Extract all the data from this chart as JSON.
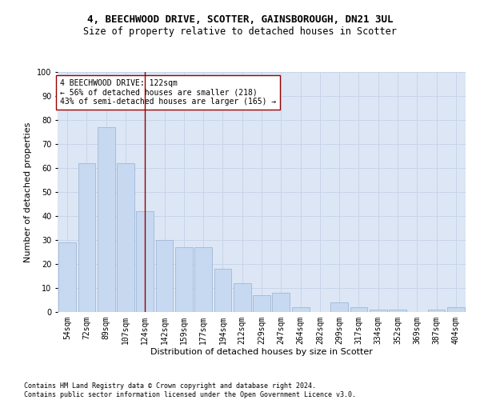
{
  "title1": "4, BEECHWOOD DRIVE, SCOTTER, GAINSBOROUGH, DN21 3UL",
  "title2": "Size of property relative to detached houses in Scotter",
  "xlabel": "Distribution of detached houses by size in Scotter",
  "ylabel": "Number of detached properties",
  "categories": [
    "54sqm",
    "72sqm",
    "89sqm",
    "107sqm",
    "124sqm",
    "142sqm",
    "159sqm",
    "177sqm",
    "194sqm",
    "212sqm",
    "229sqm",
    "247sqm",
    "264sqm",
    "282sqm",
    "299sqm",
    "317sqm",
    "334sqm",
    "352sqm",
    "369sqm",
    "387sqm",
    "404sqm"
  ],
  "values": [
    29,
    62,
    77,
    62,
    42,
    30,
    27,
    27,
    18,
    12,
    7,
    8,
    2,
    0,
    4,
    2,
    1,
    1,
    0,
    1,
    2
  ],
  "bar_color": "#c6d9f0",
  "bar_edge_color": "#a0b8d8",
  "vline_x_index": 4,
  "vline_color": "#990000",
  "annotation_text": "4 BEECHWOOD DRIVE: 122sqm\n← 56% of detached houses are smaller (218)\n43% of semi-detached houses are larger (165) →",
  "annotation_box_color": "white",
  "annotation_box_edge_color": "#990000",
  "ylim": [
    0,
    100
  ],
  "yticks": [
    0,
    10,
    20,
    30,
    40,
    50,
    60,
    70,
    80,
    90,
    100
  ],
  "grid_color": "#c8d4e8",
  "background_color": "#dce6f5",
  "footer_line1": "Contains HM Land Registry data © Crown copyright and database right 2024.",
  "footer_line2": "Contains public sector information licensed under the Open Government Licence v3.0.",
  "title1_fontsize": 9,
  "title2_fontsize": 8.5,
  "tick_fontsize": 7,
  "ylabel_fontsize": 8,
  "xlabel_fontsize": 8,
  "footer_fontsize": 6,
  "annotation_fontsize": 7
}
